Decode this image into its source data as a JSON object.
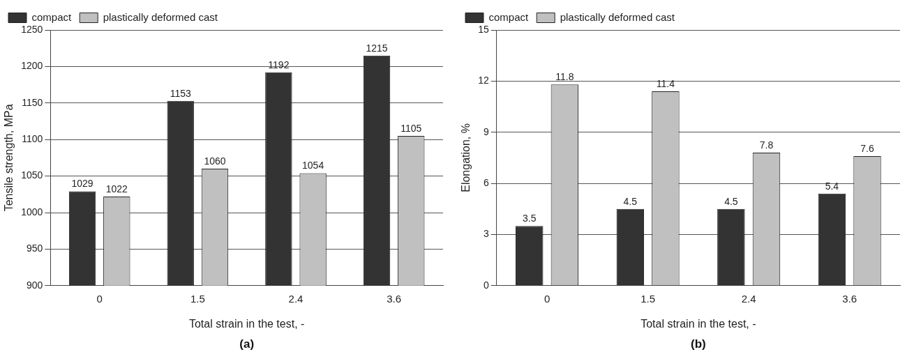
{
  "chart_data": [
    {
      "type": "bar",
      "xlabel": "Total strain in the test, -",
      "ylabel": "Tensile strength, MPa",
      "categories": [
        "0",
        "1.5",
        "2.4",
        "3.6"
      ],
      "series": [
        {
          "name": "compact",
          "color": "#333333",
          "values": [
            1029,
            1153,
            1192,
            1215
          ]
        },
        {
          "name": "plastically deformed cast",
          "color": "#c0c0c0",
          "values": [
            1022,
            1060,
            1054,
            1105
          ]
        }
      ],
      "ylim": [
        900,
        1250
      ],
      "yticks": [
        900,
        950,
        1000,
        1050,
        1100,
        1150,
        1200,
        1250
      ],
      "grid": "y",
      "legend": "top left",
      "data_labels": true,
      "annotations": [
        "(a)"
      ]
    },
    {
      "type": "bar",
      "xlabel": "Total strain in the test, -",
      "ylabel": "Elongation, %",
      "categories": [
        "0",
        "1.5",
        "2.4",
        "3.6"
      ],
      "series": [
        {
          "name": "compact",
          "color": "#333333",
          "values": [
            3.5,
            4.5,
            4.5,
            5.4
          ]
        },
        {
          "name": "plastically deformed cast",
          "color": "#c0c0c0",
          "values": [
            11.8,
            11.4,
            7.8,
            7.6
          ]
        }
      ],
      "ylim": [
        0,
        15
      ],
      "yticks": [
        0,
        3,
        6,
        9,
        12,
        15
      ],
      "grid": "y",
      "legend": "top left",
      "data_labels": true,
      "annotations": [
        "(b)"
      ]
    }
  ]
}
